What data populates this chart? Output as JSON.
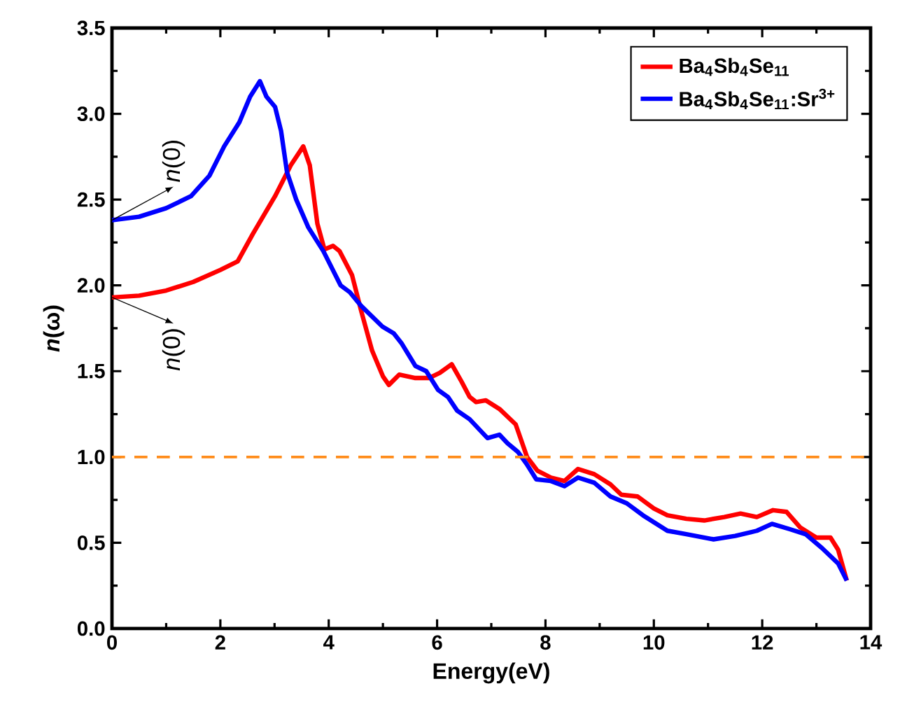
{
  "chart_data": {
    "type": "line",
    "xlabel": "Energy(eV)",
    "ylabel": "*n*(ω)",
    "xlim": [
      0,
      14
    ],
    "xticks": [
      0,
      2,
      4,
      6,
      8,
      10,
      12,
      14
    ],
    "ylim": [
      0,
      3.5
    ],
    "yticks": [
      {
        "value": 0,
        "label": "0.0"
      },
      {
        "value": 0.5,
        "label": "0.5"
      },
      {
        "value": 1,
        "label": "1.0"
      },
      {
        "value": 1.5,
        "label": "1.5"
      },
      {
        "value": 2,
        "label": "2.0"
      },
      {
        "value": 2.5,
        "label": "2.5"
      },
      {
        "value": 3,
        "label": "3.0"
      },
      {
        "value": 3.5,
        "label": "3.5"
      }
    ],
    "grid": false,
    "legend": "top right",
    "line_style": "solid",
    "marker": "none",
    "series": [
      {
        "name": "Ba$_{4}$Sb$_{4}$Se$_{11}$",
        "color": "#ff0000",
        "x": [
          0,
          0.5,
          1,
          1.5,
          2,
          2.32,
          2.6,
          3.01,
          3.3,
          3.53,
          3.65,
          3.79,
          3.92,
          4.08,
          4.2,
          4.43,
          4.6,
          4.8,
          5.0,
          5.11,
          5.3,
          5.6,
          5.85,
          6.05,
          6.27,
          6.45,
          6.6,
          6.72,
          6.9,
          7.15,
          7.45,
          7.66,
          7.85,
          8.1,
          8.35,
          8.6,
          8.9,
          9.2,
          9.4,
          9.7,
          10.0,
          10.25,
          10.6,
          10.93,
          11.3,
          11.6,
          11.9,
          12.2,
          12.45,
          12.7,
          13.0,
          13.26,
          13.4,
          13.56
        ],
        "values": [
          1.93,
          1.94,
          1.97,
          2.02,
          2.09,
          2.14,
          2.3,
          2.52,
          2.7,
          2.81,
          2.7,
          2.36,
          2.21,
          2.23,
          2.2,
          2.06,
          1.85,
          1.62,
          1.47,
          1.42,
          1.48,
          1.46,
          1.46,
          1.49,
          1.54,
          1.44,
          1.35,
          1.32,
          1.33,
          1.28,
          1.19,
          1.0,
          0.92,
          0.88,
          0.86,
          0.93,
          0.9,
          0.84,
          0.78,
          0.77,
          0.7,
          0.66,
          0.64,
          0.63,
          0.65,
          0.67,
          0.65,
          0.69,
          0.68,
          0.59,
          0.53,
          0.53,
          0.46,
          0.28
        ]
      },
      {
        "name": "Ba$_{4}$Sb$_{4}$Se$_{11}$:Sr$^{3+}$",
        "color": "#0000ff",
        "x": [
          0,
          0.5,
          1.0,
          1.46,
          1.8,
          2.07,
          2.35,
          2.55,
          2.73,
          2.85,
          3.01,
          3.12,
          3.23,
          3.4,
          3.62,
          3.9,
          4.22,
          4.39,
          4.6,
          4.99,
          5.2,
          5.35,
          5.6,
          5.8,
          6.02,
          6.2,
          6.37,
          6.6,
          6.93,
          7.15,
          7.3,
          7.49,
          7.65,
          7.83,
          8.1,
          8.35,
          8.6,
          8.9,
          9.2,
          9.5,
          9.8,
          10.25,
          10.6,
          11.1,
          11.5,
          11.9,
          12.18,
          12.5,
          12.8,
          13.1,
          13.4,
          13.56
        ],
        "values": [
          2.38,
          2.4,
          2.45,
          2.52,
          2.64,
          2.81,
          2.95,
          3.1,
          3.19,
          3.1,
          3.04,
          2.9,
          2.66,
          2.5,
          2.34,
          2.2,
          2.0,
          1.96,
          1.88,
          1.76,
          1.72,
          1.66,
          1.53,
          1.5,
          1.39,
          1.35,
          1.27,
          1.22,
          1.11,
          1.13,
          1.08,
          1.03,
          0.96,
          0.87,
          0.86,
          0.83,
          0.88,
          0.85,
          0.77,
          0.73,
          0.66,
          0.57,
          0.55,
          0.52,
          0.54,
          0.57,
          0.61,
          0.58,
          0.55,
          0.47,
          0.38,
          0.28
        ]
      }
    ],
    "ref_lines": [
      {
        "axis": "y",
        "value": 1,
        "color": "#ff8c1a",
        "line_style": "dashed"
      }
    ],
    "annotations": [
      {
        "text": "*n*(0)",
        "x": 0,
        "y": 2.38
      },
      {
        "text": "*n*(0)",
        "x": 0,
        "y": 1.93
      }
    ]
  }
}
